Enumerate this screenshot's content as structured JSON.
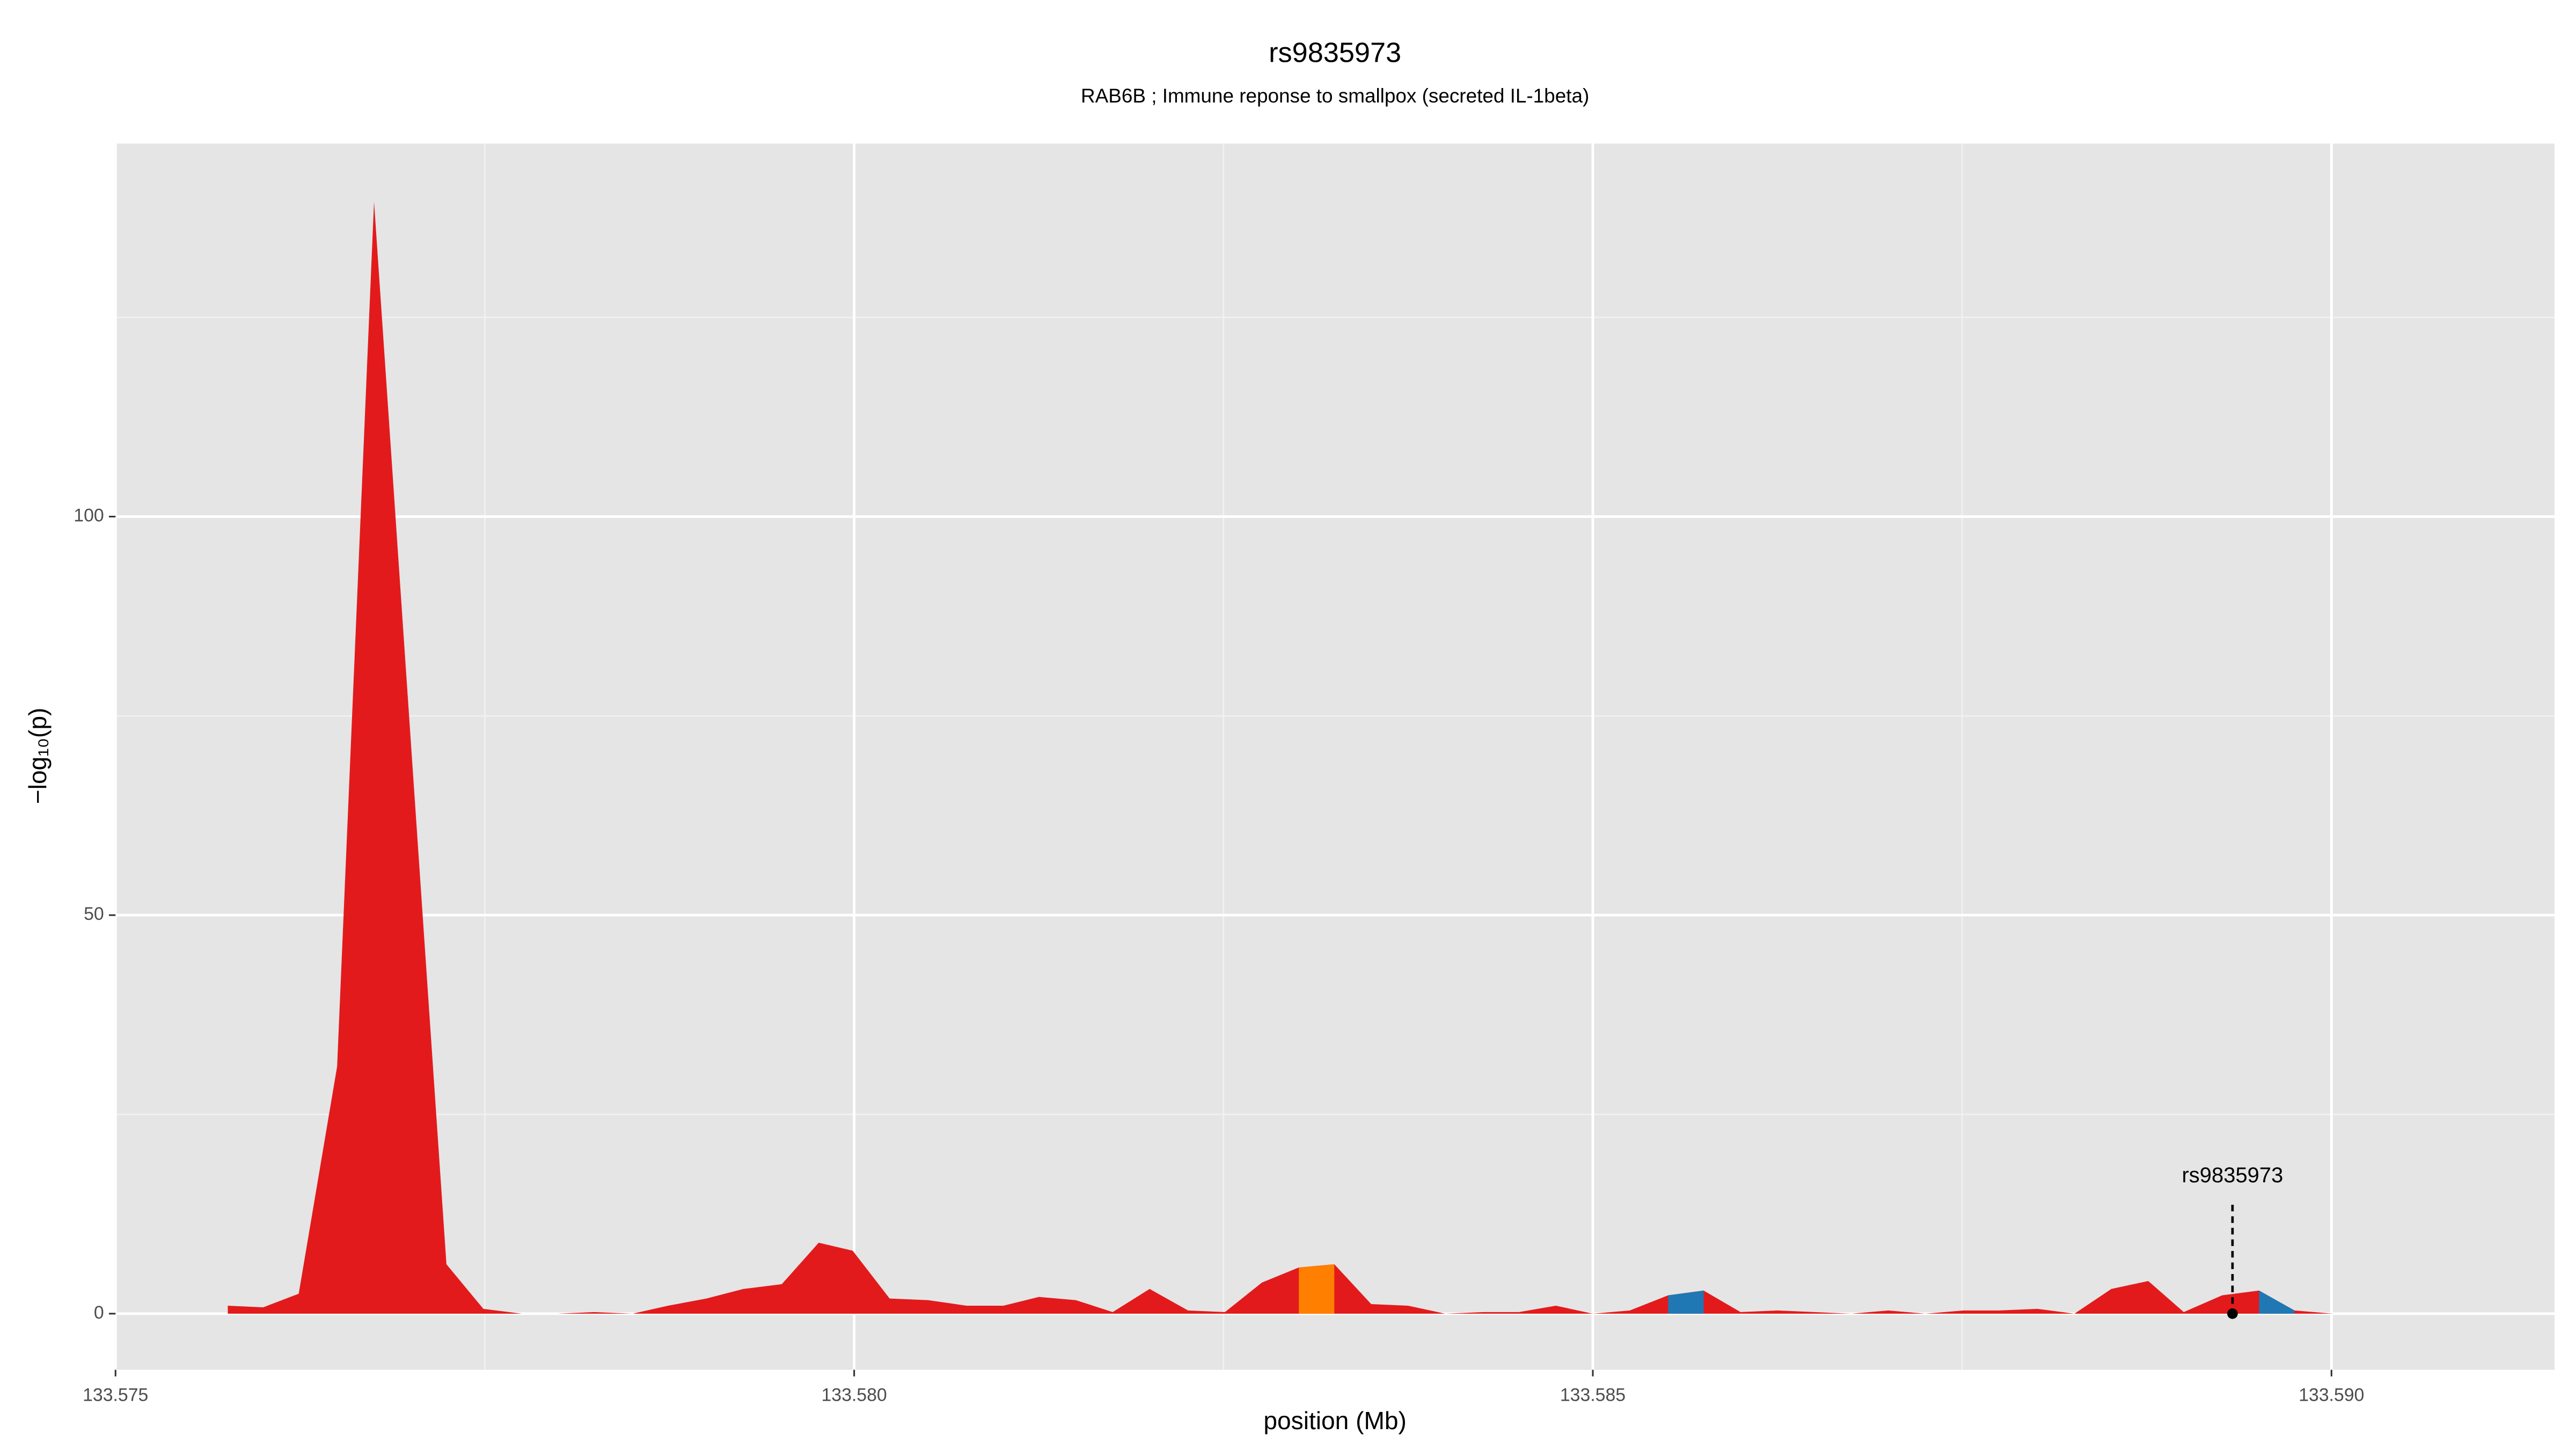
{
  "chart_data": {
    "type": "area",
    "title": "rs9835973",
    "subtitle": "RAB6B ; Immune reponse to smallpox (secreted IL-1beta)",
    "xlabel": "position (Mb)",
    "ylabel": "−log₁₀(p)",
    "xlim": [
      133.575,
      133.59151
    ],
    "ylim": [
      -7.04,
      146.8
    ],
    "xticks": [
      133.575,
      {
        "value": 133.58,
        "label": "133.580"
      },
      133.585,
      {
        "value": 133.59,
        "label": "133.590"
      }
    ],
    "yticks": [
      0,
      50,
      100
    ],
    "xminor": [
      133.5775,
      133.5825,
      133.5875
    ],
    "yminor": [
      25,
      75,
      125
    ],
    "grid": true,
    "series": [
      {
        "color": "#e31a1c",
        "x": [
          133.57576,
          133.576,
          133.57624,
          133.5765,
          133.57675,
          133.57724,
          133.57749,
          133.57775,
          133.57799,
          133.57824,
          133.5785,
          133.57874,
          133.579,
          133.57925,
          133.57951,
          133.57976,
          133.57999,
          133.58024,
          133.5805,
          133.58076,
          133.58101,
          133.58125,
          133.5815,
          133.58175,
          133.582,
          133.58226,
          133.58251,
          133.58276,
          133.58301,
          133.58325,
          133.5835,
          133.58375,
          133.584,
          133.58426,
          133.5845,
          133.58475,
          133.585,
          133.58525,
          133.58551,
          133.58575,
          133.586,
          133.58625,
          133.5865,
          133.58675,
          133.587,
          133.58725,
          133.58751,
          133.58775,
          133.58801,
          133.58826,
          133.58851,
          133.58876,
          133.589,
          133.58926,
          133.58951,
          133.58975,
          133.59001,
          133.59025,
          133.5905
        ],
        "values": [
          1.0,
          0.8,
          2.5,
          31,
          139.5,
          6.2,
          0.6,
          0,
          0,
          0.2,
          0,
          1.0,
          1.9,
          3.1,
          3.7,
          8.9,
          7.9,
          1.9,
          1.7,
          1.0,
          1.0,
          2.1,
          1.7,
          0.2,
          3.1,
          0.4,
          0.2,
          3.9,
          5.8,
          6.2,
          1.2,
          1.0,
          0,
          0.2,
          0.2,
          1.0,
          0,
          0.4,
          2.3,
          2.9,
          0.2,
          0.4,
          0.2,
          0,
          0.4,
          0,
          0.4,
          0.4,
          0.6,
          0,
          3.1,
          4.1,
          0.2,
          2.3,
          2.9,
          0.4,
          0,
          0,
          0
        ]
      },
      {
        "color": "#ff7f00",
        "x": [
          133.58301,
          133.58325
        ],
        "values": [
          5.8,
          6.2
        ]
      },
      {
        "color": "#1f78b4",
        "x": [
          133.58551,
          133.58575
        ],
        "values": [
          2.3,
          2.9
        ]
      },
      {
        "color": "#1f78b4",
        "x": [
          133.58951,
          133.58975
        ],
        "values": [
          2.9,
          0.4
        ]
      }
    ],
    "annotation": {
      "text": "rs9835973",
      "x": 133.58933,
      "y": 0
    }
  }
}
